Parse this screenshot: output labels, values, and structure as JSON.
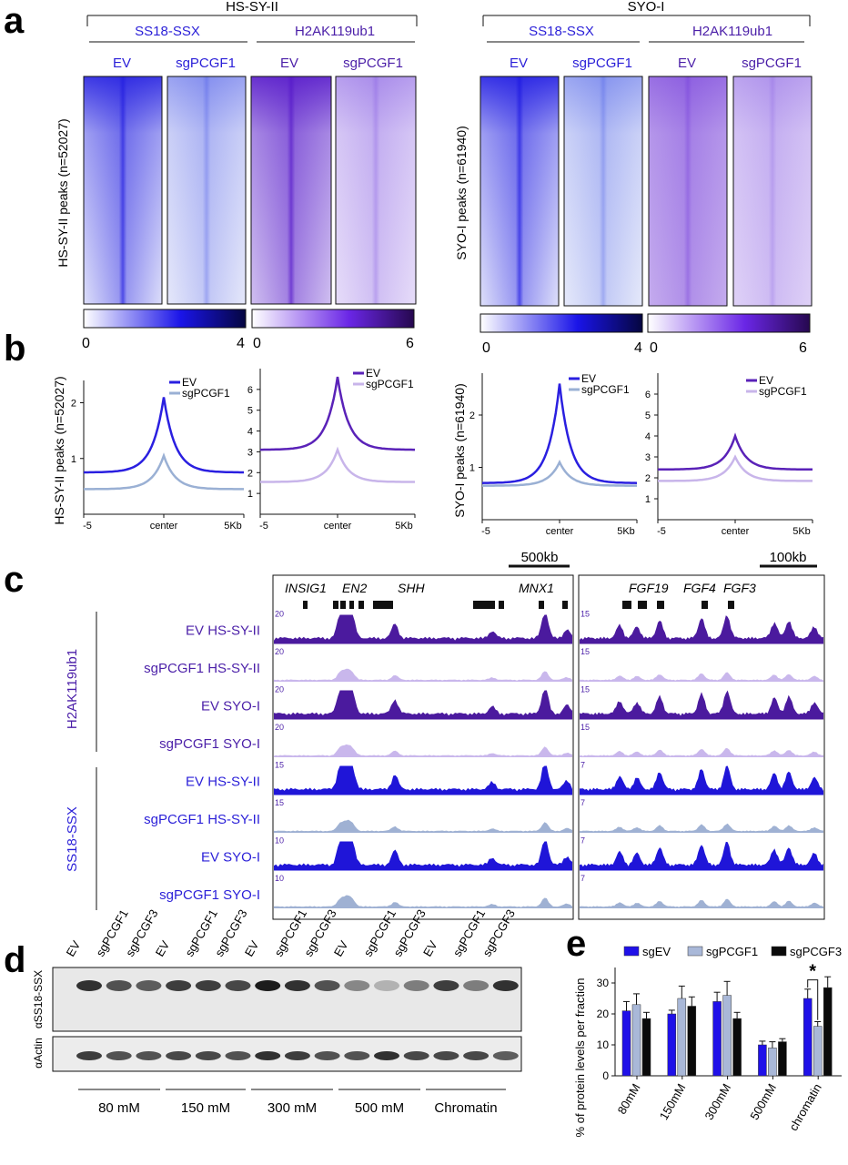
{
  "panels": {
    "a": "a",
    "b": "b",
    "c": "c",
    "d": "d",
    "e": "e"
  },
  "panel_a": {
    "groups": [
      {
        "cell": "HS-SY-II",
        "ylabel": "HS-SY-II peaks (n=52027)",
        "targets": [
          "SS18-SSX",
          "H2AK119ub1"
        ],
        "conds": [
          "EV",
          "sgPCGF1",
          "EV",
          "sgPCGF1"
        ]
      },
      {
        "cell": "SYO-I",
        "ylabel": "SYO-I peaks (n=61940)",
        "targets": [
          "SS18-SSX",
          "H2AK119ub1"
        ],
        "conds": [
          "EV",
          "sgPCGF1",
          "EV",
          "sgPCGF1"
        ]
      }
    ],
    "colorbars": [
      {
        "min": "0",
        "max": "4",
        "color": "#1c10e0"
      },
      {
        "min": "0",
        "max": "6",
        "color": "#5b1fd8"
      },
      {
        "min": "0",
        "max": "4",
        "color": "#1c10e0"
      },
      {
        "min": "0",
        "max": "6",
        "color": "#5b1fd8"
      }
    ]
  },
  "panel_b": {
    "ylabels": [
      "HS-SY-II peaks (n=52027)",
      "SYO-I peaks (n=61940)"
    ],
    "x_ticks": [
      "-5",
      "center",
      "5Kb"
    ],
    "chart_data": [
      {
        "type": "line",
        "title": "",
        "ylim": [
          0,
          2.4
        ],
        "yticks": [
          "1",
          "2"
        ],
        "legend": [
          "EV",
          "sgPCGF1"
        ],
        "colors": [
          "#2a1fe0",
          "#9ab0d4"
        ],
        "series": [
          {
            "name": "EV",
            "baseline": 0.75,
            "peak": 2.1
          },
          {
            "name": "sgPCGF1",
            "baseline": 0.45,
            "peak": 1.05
          }
        ]
      },
      {
        "type": "line",
        "title": "",
        "ylim": [
          0,
          7
        ],
        "yticks": [
          "1",
          "2",
          "3",
          "4",
          "5",
          "6"
        ],
        "legend": [
          "EV",
          "sgPCGF1"
        ],
        "colors": [
          "#5a22b8",
          "#c8b5ea"
        ],
        "series": [
          {
            "name": "EV",
            "baseline": 3.1,
            "peak": 6.6
          },
          {
            "name": "sgPCGF1",
            "baseline": 1.55,
            "peak": 3.1
          }
        ]
      },
      {
        "type": "line",
        "title": "",
        "ylim": [
          0,
          2.8
        ],
        "yticks": [
          "1",
          "2"
        ],
        "legend": [
          "EV",
          "sgPCGF1"
        ],
        "colors": [
          "#2a1fe0",
          "#9ab0d4"
        ],
        "series": [
          {
            "name": "EV",
            "baseline": 0.7,
            "peak": 2.6
          },
          {
            "name": "sgPCGF1",
            "baseline": 0.65,
            "peak": 1.1
          }
        ]
      },
      {
        "type": "line",
        "title": "",
        "ylim": [
          0,
          7
        ],
        "yticks": [
          "1",
          "2",
          "3",
          "4",
          "5",
          "6"
        ],
        "legend": [
          "EV",
          "sgPCGF1"
        ],
        "colors": [
          "#5a22b8",
          "#c8b5ea"
        ],
        "series": [
          {
            "name": "EV",
            "baseline": 2.4,
            "peak": 4.0
          },
          {
            "name": "sgPCGF1",
            "baseline": 1.85,
            "peak": 3.0
          }
        ]
      }
    ]
  },
  "panel_c": {
    "scale_left": "500kb",
    "scale_right": "100kb",
    "genes_left": [
      "INSIG1",
      "EN2",
      "SHH",
      "MNX1"
    ],
    "genes_right": [
      "FGF19",
      "FGF4",
      "FGF3"
    ],
    "group_labels": [
      "H2AK119ub1",
      "SS18-SSX"
    ],
    "tracks": [
      {
        "label": "EV HS-SY-II",
        "scale_left": "20",
        "scale_right": "15",
        "color": "#4b1a9e"
      },
      {
        "label": "sgPCGF1 HS-SY-II",
        "scale_left": "20",
        "scale_right": "15",
        "color": "#c9b7ec"
      },
      {
        "label": "EV SYO-I",
        "scale_left": "20",
        "scale_right": "15",
        "color": "#4b1a9e"
      },
      {
        "label": "sgPCGF1 SYO-I",
        "scale_left": "20",
        "scale_right": "15",
        "color": "#c9b7ec"
      },
      {
        "label": "EV HS-SY-II",
        "scale_left": "15",
        "scale_right": "7",
        "color": "#1f15d8"
      },
      {
        "label": "sgPCGF1 HS-SY-II",
        "scale_left": "15",
        "scale_right": "7",
        "color": "#9fb1d3"
      },
      {
        "label": "EV SYO-I",
        "scale_left": "10",
        "scale_right": "7",
        "color": "#1f15d8"
      },
      {
        "label": "sgPCGF1 SYO-I",
        "scale_left": "10",
        "scale_right": "7",
        "color": "#9fb1d3"
      }
    ]
  },
  "panel_d": {
    "lane_labels": [
      "EV",
      "sgPCGF1",
      "sgPCGF3",
      "EV",
      "sgPCGF1",
      "sgPCGF3",
      "EV",
      "sgPCGF1",
      "sgPCGF3",
      "EV",
      "sgPCGF1",
      "sgPCGF3",
      "EV",
      "sgPCGF1",
      "sgPCGF3"
    ],
    "blot_labels": [
      "αSS18-SSX",
      "αActin"
    ],
    "fractions": [
      "80 mM",
      "150 mM",
      "300 mM",
      "500 mM",
      "Chromatin"
    ],
    "band_intensity_top": [
      0.85,
      0.7,
      0.65,
      0.8,
      0.8,
      0.75,
      0.95,
      0.85,
      0.7,
      0.45,
      0.25,
      0.5,
      0.8,
      0.5,
      0.85
    ],
    "band_intensity_bottom": [
      0.8,
      0.7,
      0.7,
      0.75,
      0.75,
      0.7,
      0.85,
      0.8,
      0.7,
      0.7,
      0.85,
      0.75,
      0.75,
      0.75,
      0.65
    ]
  },
  "panel_e": {
    "chart_data": {
      "type": "bar",
      "ylabel": "% of protein levels per fraction",
      "categories": [
        "80mM",
        "150mM",
        "300mM",
        "500mM",
        "chromatin"
      ],
      "ylim": [
        0,
        35
      ],
      "yticks": [
        "0",
        "10",
        "20",
        "30"
      ],
      "series": [
        {
          "name": "sgEV",
          "color": "#1f10e8",
          "values": [
            21,
            20,
            24,
            10,
            25
          ],
          "errors": [
            3,
            1.2,
            3,
            1.2,
            3
          ]
        },
        {
          "name": "sgPCGF1",
          "color": "#a9b8d8",
          "values": [
            23,
            25,
            26,
            9,
            16
          ],
          "errors": [
            3.5,
            4,
            4.5,
            2,
            1.5
          ]
        },
        {
          "name": "sgPCGF3",
          "color": "#0a0a0a",
          "values": [
            18.5,
            22.5,
            18.5,
            11,
            28.5
          ],
          "errors": [
            2,
            3,
            2,
            1,
            3.5
          ]
        }
      ],
      "annotation": "*"
    }
  }
}
